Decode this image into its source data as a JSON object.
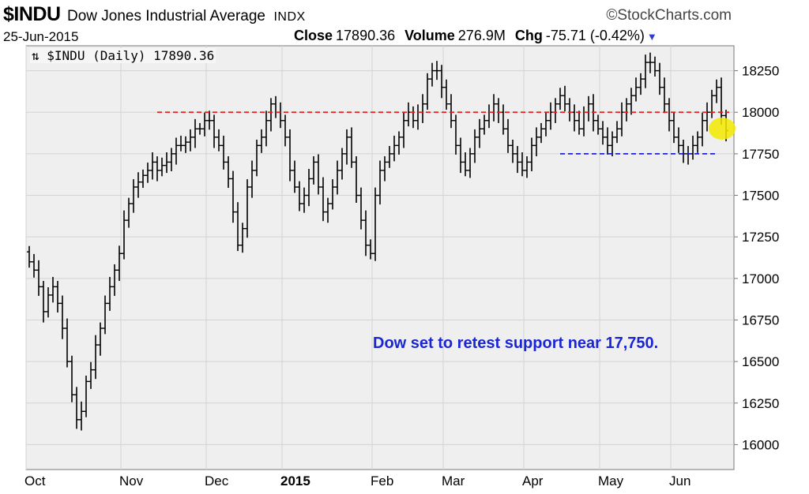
{
  "header": {
    "symbol": "$INDU",
    "name": "Dow Jones Industrial Average",
    "exchange": "INDX",
    "brand": "©StockCharts.com",
    "date": "25-Jun-2015",
    "close_label": "Close",
    "close_value": "17890.36",
    "volume_label": "Volume",
    "volume_value": "276.9M",
    "chg_label": "Chg",
    "chg_value": "-75.71 (-0.42%)",
    "chart_tag": "$INDU (Daily) 17890.36"
  },
  "chart_data": {
    "type": "ohlc",
    "ylim": [
      15850,
      18400
    ],
    "yticks": [
      16000,
      16250,
      16500,
      16750,
      17000,
      17250,
      17500,
      17750,
      18000,
      18250
    ],
    "ytick_labels": [
      "16000",
      "16250",
      "16500",
      "16750",
      "17000",
      "17250",
      "17500",
      "17750",
      "18000",
      "18250"
    ],
    "grid": true,
    "months": [
      {
        "label": "Oct",
        "index": 0,
        "bold": false
      },
      {
        "label": "Nov",
        "index": 20,
        "bold": false
      },
      {
        "label": "Dec",
        "index": 38,
        "bold": false
      },
      {
        "label": "2015",
        "index": 54,
        "bold": true
      },
      {
        "label": "Feb",
        "index": 73,
        "bold": false
      },
      {
        "label": "Mar",
        "index": 88,
        "bold": false
      },
      {
        "label": "Apr",
        "index": 105,
        "bold": false
      },
      {
        "label": "May",
        "index": 121,
        "bold": false
      },
      {
        "label": "Jun",
        "index": 136,
        "bold": false
      }
    ],
    "closes": [
      17100,
      17050,
      16950,
      16800,
      16900,
      16950,
      16850,
      16700,
      16500,
      16300,
      16150,
      16200,
      16380,
      16450,
      16600,
      16700,
      16850,
      16950,
      17050,
      17150,
      17350,
      17450,
      17550,
      17580,
      17620,
      17650,
      17700,
      17650,
      17680,
      17700,
      17750,
      17800,
      17800,
      17820,
      17850,
      17900,
      17900,
      17950,
      17950,
      17850,
      17800,
      17700,
      17600,
      17400,
      17200,
      17300,
      17550,
      17650,
      17800,
      17850,
      17950,
      18050,
      18000,
      17950,
      17850,
      17650,
      17550,
      17450,
      17500,
      17600,
      17700,
      17550,
      17400,
      17450,
      17550,
      17650,
      17750,
      17850,
      17700,
      17500,
      17350,
      17200,
      17150,
      17500,
      17650,
      17700,
      17750,
      17800,
      17850,
      17950,
      18000,
      17950,
      18000,
      18050,
      18200,
      18250,
      18250,
      18150,
      18050,
      17950,
      17800,
      17700,
      17650,
      17750,
      17850,
      17900,
      17950,
      18000,
      18050,
      18000,
      17900,
      17800,
      17750,
      17700,
      17650,
      17700,
      17800,
      17850,
      17900,
      17950,
      18000,
      18050,
      18100,
      18050,
      18000,
      17950,
      17900,
      18000,
      18050,
      17950,
      17900,
      17850,
      17800,
      17850,
      17900,
      18000,
      18050,
      18100,
      18150,
      18200,
      18300,
      18300,
      18250,
      18150,
      18050,
      17950,
      17850,
      17800,
      17750,
      17750,
      17800,
      17850,
      17950,
      18000,
      18100,
      18150,
      17980,
      17890
    ],
    "resistance": 18000,
    "support": 17750,
    "support_from_index": 112,
    "support_to_index": 145,
    "resistance_from_index": 28,
    "annotation": "Dow set to retest support near 17,750."
  }
}
